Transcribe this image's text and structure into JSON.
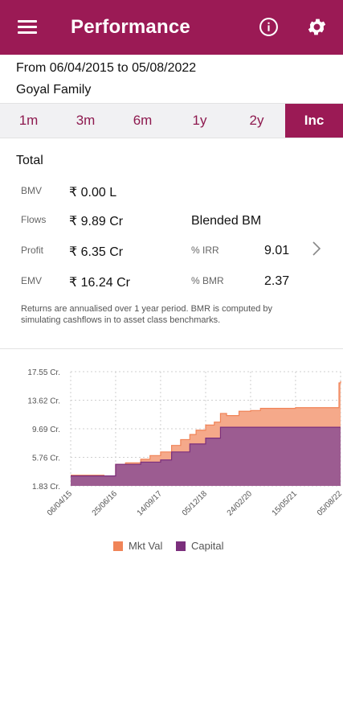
{
  "header": {
    "title": "Performance",
    "menu_icon": "hamburger-menu-icon",
    "info_icon": "info-icon",
    "settings_icon": "gear-icon"
  },
  "date_range": "From 06/04/2015 to 05/08/2022",
  "family_name": "Goyal Family",
  "tabs": [
    {
      "label": "1m",
      "active": false
    },
    {
      "label": "3m",
      "active": false
    },
    {
      "label": "6m",
      "active": false
    },
    {
      "label": "1y",
      "active": false
    },
    {
      "label": "2y",
      "active": false
    },
    {
      "label": "Inc",
      "active": true
    }
  ],
  "summary": {
    "title": "Total",
    "bmv": {
      "label": "BMV",
      "value": "₹ 0.00 L"
    },
    "flows": {
      "label": "Flows",
      "value": "₹ 9.89 Cr"
    },
    "profit": {
      "label": "Profit",
      "value": "₹ 6.35 Cr"
    },
    "emv": {
      "label": "EMV",
      "value": "₹ 16.24 Cr"
    },
    "blended_bm": "Blended BM",
    "irr": {
      "label": "% IRR",
      "value": "9.01"
    },
    "bmr": {
      "label": "% BMR",
      "value": "2.37"
    }
  },
  "note": "Returns are annualised over 1 year period. BMR is computed by simulating cashflows in to asset class benchmarks.",
  "colors": {
    "brand": "#9b1a55",
    "mkt_val": "#f08458",
    "mkt_val_fill": "#f5a98a",
    "capital": "#7b2f7c",
    "capital_fill": "#9c5c91"
  },
  "chart_data": {
    "type": "area",
    "y_ticks": [
      "17.55 Cr.",
      "13.62 Cr.",
      "9.69 Cr.",
      "5.76 Cr.",
      "1.83 Cr."
    ],
    "y_values": [
      17.55,
      13.62,
      9.69,
      5.76,
      1.83
    ],
    "x_ticks": [
      "06/04/15",
      "25/06/16",
      "14/09/17",
      "05/12/18",
      "24/02/20",
      "15/05/21",
      "05/08/22"
    ],
    "grid": true,
    "legend_position": "bottom",
    "series": [
      {
        "name": "Mkt Val",
        "x": [
          "06/04/15",
          "01/10/15",
          "01/03/16",
          "25/06/16",
          "01/10/16",
          "01/03/17",
          "01/06/17",
          "14/09/17",
          "01/01/18",
          "01/04/18",
          "01/07/18",
          "01/09/18",
          "05/12/18",
          "01/03/19",
          "01/05/19",
          "01/07/19",
          "01/11/19",
          "24/02/20",
          "01/06/20",
          "01/10/20",
          "15/05/21",
          "01/01/22",
          "01/05/22",
          "15/07/22",
          "20/07/22",
          "05/08/22"
        ],
        "values": [
          3.3,
          3.3,
          3.2,
          4.8,
          5.0,
          5.5,
          6.0,
          6.5,
          7.4,
          8.2,
          8.9,
          9.5,
          10.2,
          10.6,
          11.8,
          11.5,
          12.1,
          12.2,
          12.5,
          12.5,
          12.6,
          12.6,
          12.6,
          12.6,
          16.0,
          16.24
        ]
      },
      {
        "name": "Capital",
        "x": [
          "06/04/15",
          "01/10/15",
          "01/03/16",
          "25/06/16",
          "01/10/16",
          "01/03/17",
          "01/06/17",
          "14/09/17",
          "01/01/18",
          "01/04/18",
          "01/07/18",
          "01/09/18",
          "05/12/18",
          "01/03/19",
          "01/05/19",
          "01/07/19",
          "01/11/19",
          "24/02/20",
          "01/06/20",
          "01/10/20",
          "15/05/21",
          "01/01/22",
          "01/05/22",
          "15/07/22",
          "20/07/22",
          "05/08/22"
        ],
        "values": [
          3.2,
          3.2,
          3.2,
          4.8,
          4.8,
          5.1,
          5.1,
          5.4,
          6.5,
          6.5,
          7.6,
          7.6,
          8.4,
          8.4,
          9.9,
          9.9,
          9.9,
          9.9,
          9.9,
          9.9,
          9.9,
          9.9,
          9.9,
          9.9,
          9.9,
          9.9
        ]
      }
    ],
    "ylim": [
      1.83,
      17.55
    ]
  }
}
